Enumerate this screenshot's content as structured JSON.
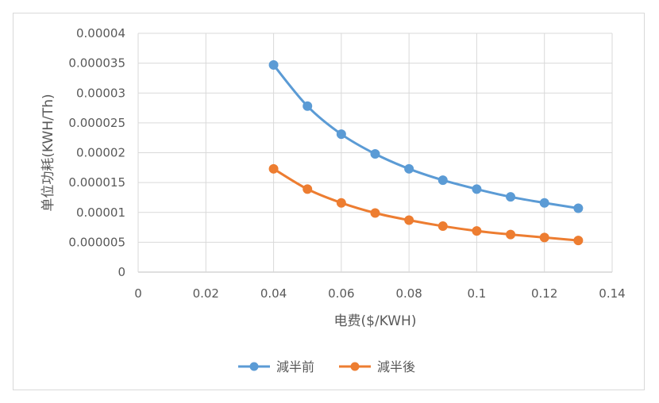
{
  "chart_data": {
    "type": "line",
    "title": "",
    "xlabel": "电费($/KWH)",
    "ylabel": "单位功耗(KWH/Th)",
    "xlim": [
      0,
      0.14
    ],
    "ylim": [
      0,
      4e-05
    ],
    "x_ticks": [
      0,
      0.02,
      0.04,
      0.06,
      0.08,
      0.1,
      0.12,
      0.14
    ],
    "x_tick_labels": [
      "0",
      "0.02",
      "0.04",
      "0.06",
      "0.08",
      "0.1",
      "0.12",
      "0.14"
    ],
    "y_ticks": [
      0,
      5e-06,
      1e-05,
      1.5e-05,
      2e-05,
      2.5e-05,
      3e-05,
      3.5e-05,
      4e-05
    ],
    "y_tick_labels": [
      "0",
      "0.000005",
      "0.00001",
      "0.000015",
      "0.00002",
      "0.000025",
      "0.00003",
      "0.000035",
      "0.00004"
    ],
    "grid": true,
    "legend_position": "bottom",
    "series": [
      {
        "name": "減半前",
        "color": "#5b9bd5",
        "x": [
          0.04,
          0.05,
          0.06,
          0.07,
          0.08,
          0.09,
          0.1,
          0.11,
          0.12,
          0.13
        ],
        "y": [
          3.47e-05,
          2.78e-05,
          2.31e-05,
          1.98e-05,
          1.73e-05,
          1.54e-05,
          1.39e-05,
          1.26e-05,
          1.16e-05,
          1.07e-05
        ]
      },
      {
        "name": "減半後",
        "color": "#ed7d31",
        "x": [
          0.04,
          0.05,
          0.06,
          0.07,
          0.08,
          0.09,
          0.1,
          0.11,
          0.12,
          0.13
        ],
        "y": [
          1.73e-05,
          1.39e-05,
          1.16e-05,
          9.9e-06,
          8.7e-06,
          7.7e-06,
          6.9e-06,
          6.3e-06,
          5.8e-06,
          5.3e-06
        ]
      }
    ]
  }
}
